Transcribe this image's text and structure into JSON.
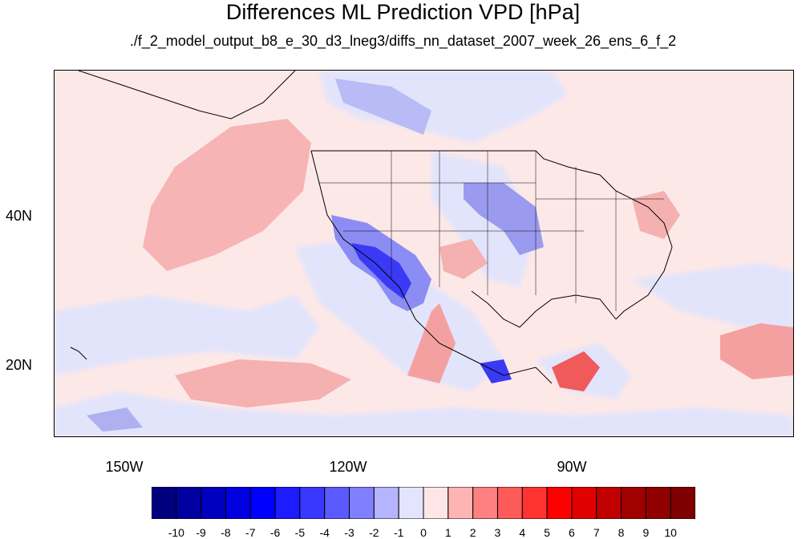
{
  "title": "Differences ML Prediction VPD [hPa]",
  "subtitle": "./f_2_model_output_b8_e_30_d3_lneg3/diffs_nn_dataset_2007_week_26_ens_6_f_2",
  "map": {
    "lat_labels": [
      "40N",
      "20N"
    ],
    "lon_labels": [
      "150W",
      "120W",
      "90W"
    ],
    "background_color": "#fde8e8"
  },
  "colorbar": {
    "colors": [
      "#00007f",
      "#0000a0",
      "#0000c0",
      "#0000e0",
      "#0000ff",
      "#1c1cff",
      "#3838ff",
      "#5a5aff",
      "#8080ff",
      "#b4b4ff",
      "#e4e4ff",
      "#ffe6e6",
      "#ffb4b4",
      "#ff8080",
      "#ff5a5a",
      "#ff3232",
      "#ff0000",
      "#e00000",
      "#c00000",
      "#a00000",
      "#900000",
      "#7f0000"
    ],
    "labels": [
      "-10",
      "-9",
      "-8",
      "-7",
      "-6",
      "-5",
      "-4",
      "-3",
      "-2",
      "-1",
      "0",
      "1",
      "2",
      "3",
      "4",
      "5",
      "6",
      "7",
      "8",
      "9",
      "10"
    ]
  }
}
